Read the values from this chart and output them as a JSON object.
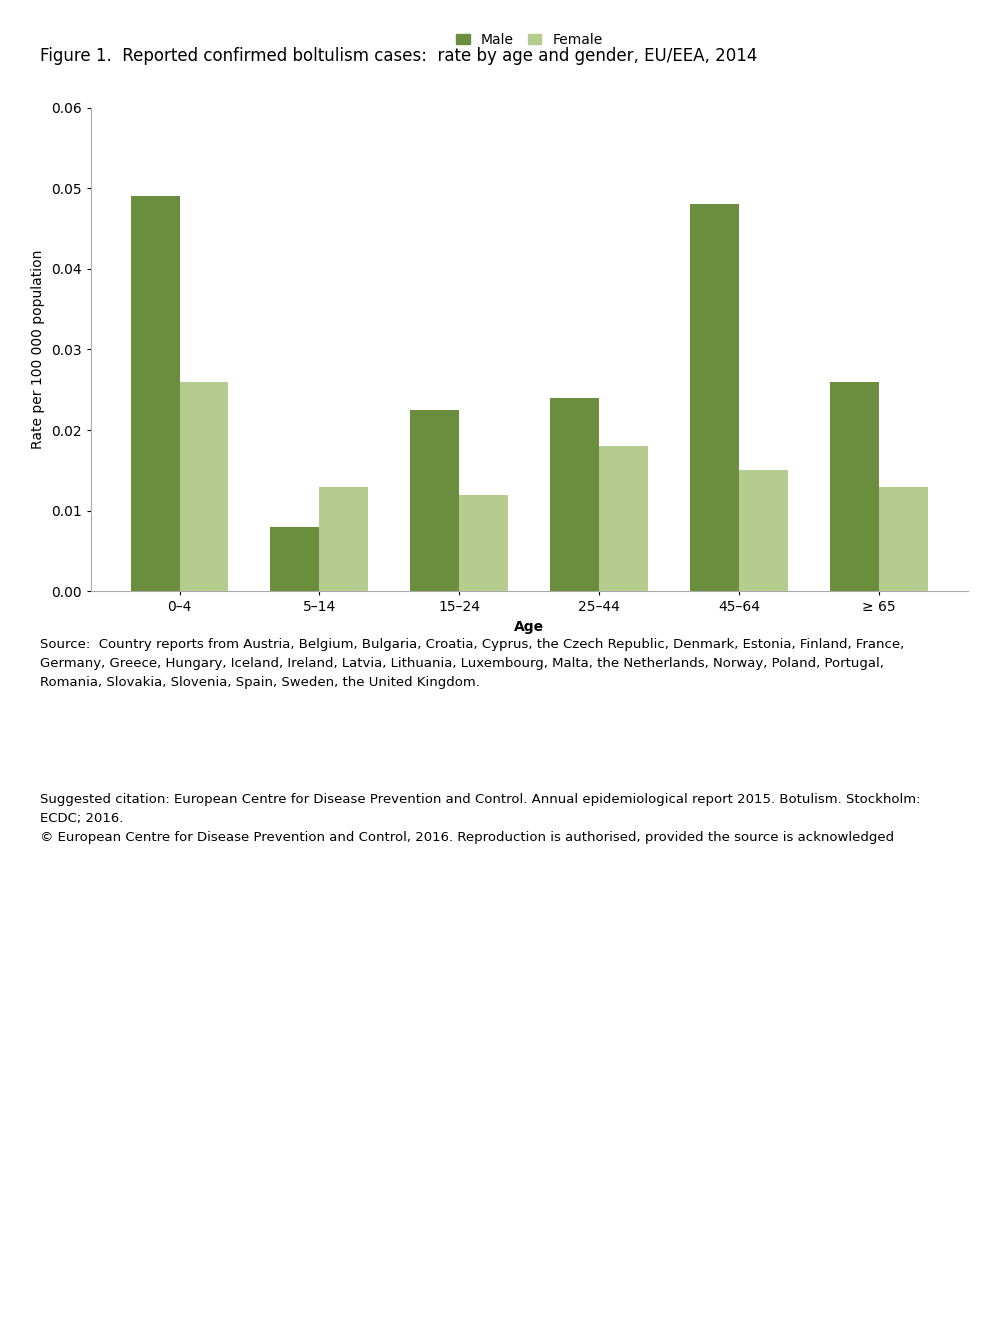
{
  "title": "Figure 1.  Reported confirmed boltulism cases:  rate by age and gender, EU/EEA, 2014",
  "categories": [
    "0–4",
    "5–14",
    "15–24",
    "25–44",
    "45–64",
    "≥ 65"
  ],
  "male_values": [
    0.049,
    0.008,
    0.0225,
    0.024,
    0.048,
    0.026
  ],
  "female_values": [
    0.026,
    0.013,
    0.012,
    0.018,
    0.015,
    0.013
  ],
  "male_color": "#6B8E3E",
  "female_color": "#B5CC8E",
  "ylabel": "Rate per 100 000 population",
  "xlabel": "Age",
  "ylim": [
    0,
    0.06
  ],
  "yticks": [
    0.0,
    0.01,
    0.02,
    0.03,
    0.04,
    0.05,
    0.06
  ],
  "legend_labels": [
    "Male",
    "Female"
  ],
  "source_text": "Source:  Country reports from Austria, Belgium, Bulgaria, Croatia, Cyprus, the Czech Republic, Denmark, Estonia, Finland, France,\nGermany, Greece, Hungary, Iceland, Ireland, Latvia, Lithuania, Luxembourg, Malta, the Netherlands, Norway, Poland, Portugal,\nRomania, Slovakia, Slovenia, Spain, Sweden, the United Kingdom.",
  "citation_text": "Suggested citation: European Centre for Disease Prevention and Control. Annual epidemiological report 2015. Botulism. Stockholm:\nECDC; 2016.\n© European Centre for Disease Prevention and Control, 2016. Reproduction is authorised, provided the source is acknowledged",
  "bar_width": 0.35,
  "title_fontsize": 12,
  "axis_fontsize": 10,
  "tick_fontsize": 10,
  "legend_fontsize": 10,
  "annotation_fontsize": 9.5
}
